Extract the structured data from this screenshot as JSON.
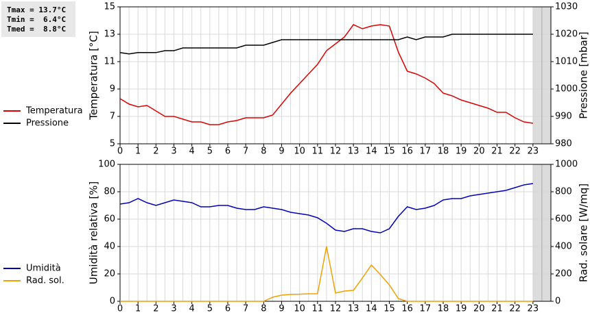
{
  "stats": [
    "Tmax = 13.7°C",
    "Tmin =  6.4°C",
    "Tmed =  8.8°C"
  ],
  "chart_data": [
    {
      "type": "line",
      "y_label": "Temperatura [°C]",
      "y2_label": "Pressione [mbar]",
      "x": [
        0,
        0.5,
        1,
        1.5,
        2,
        2.5,
        3,
        3.5,
        4,
        4.5,
        5,
        5.5,
        6,
        6.5,
        7,
        7.5,
        8,
        8.5,
        9,
        9.5,
        10,
        10.5,
        11,
        11.5,
        12,
        12.5,
        13,
        13.5,
        14,
        14.5,
        15,
        15.5,
        16,
        16.5,
        17,
        17.5,
        18,
        18.5,
        19,
        19.5,
        20,
        20.5,
        21,
        21.5,
        22,
        22.5,
        23
      ],
      "xlim": [
        0,
        24
      ],
      "xticks": [
        0,
        1,
        2,
        3,
        4,
        5,
        6,
        7,
        8,
        9,
        10,
        11,
        12,
        13,
        14,
        15,
        16,
        17,
        18,
        19,
        20,
        21,
        22,
        23
      ],
      "ylim": [
        5,
        15
      ],
      "yticks": [
        5,
        7,
        9,
        11,
        13,
        15
      ],
      "y2lim": [
        980,
        1030
      ],
      "y2ticks": [
        980,
        990,
        1000,
        1010,
        1020,
        1030
      ],
      "grid": true,
      "series": [
        {
          "name": "Temperatura",
          "color": "#dd0000",
          "axis": "y",
          "values": [
            8.3,
            7.9,
            7.7,
            7.8,
            7.4,
            7.0,
            7.0,
            6.8,
            6.6,
            6.6,
            6.4,
            6.4,
            6.6,
            6.7,
            6.9,
            6.9,
            6.9,
            7.1,
            7.9,
            8.7,
            9.4,
            10.1,
            10.8,
            11.8,
            12.3,
            12.8,
            13.7,
            13.4,
            13.6,
            13.7,
            13.6,
            11.7,
            10.3,
            10.1,
            9.8,
            9.4,
            8.7,
            8.5,
            8.2,
            8.0,
            7.8,
            7.6,
            7.3,
            7.3,
            6.9,
            6.6,
            6.5
          ]
        },
        {
          "name": "Pressione",
          "color": "#000000",
          "axis": "y2",
          "values": [
            1013.3,
            1012.8,
            1013.3,
            1013.3,
            1013.3,
            1014,
            1014,
            1015,
            1015,
            1015,
            1015,
            1015,
            1015,
            1015,
            1016,
            1016,
            1016,
            1017,
            1018,
            1018,
            1018,
            1018,
            1018,
            1018,
            1018,
            1018,
            1018,
            1018,
            1018,
            1018,
            1018,
            1018,
            1019,
            1018,
            1019,
            1019,
            1019,
            1020,
            1020,
            1020,
            1020,
            1020,
            1020,
            1020,
            1020,
            1020,
            1020
          ]
        }
      ]
    },
    {
      "type": "line",
      "y_label": "Umidità relativa [%]",
      "y2_label": "Rad. solare [W/mq]",
      "x": [
        0,
        0.5,
        1,
        1.5,
        2,
        2.5,
        3,
        3.5,
        4,
        4.5,
        5,
        5.5,
        6,
        6.5,
        7,
        7.5,
        8,
        8.5,
        9,
        9.5,
        10,
        10.5,
        11,
        11.5,
        12,
        12.5,
        13,
        13.5,
        14,
        14.5,
        15,
        15.5,
        16,
        16.5,
        17,
        17.5,
        18,
        18.5,
        19,
        19.5,
        20,
        20.5,
        21,
        21.5,
        22,
        22.5,
        23
      ],
      "xlim": [
        0,
        24
      ],
      "xticks": [
        0,
        1,
        2,
        3,
        4,
        5,
        6,
        7,
        8,
        9,
        10,
        11,
        12,
        13,
        14,
        15,
        16,
        17,
        18,
        19,
        20,
        21,
        22,
        23
      ],
      "ylim": [
        0,
        100
      ],
      "yticks": [
        0,
        20,
        40,
        60,
        80,
        100
      ],
      "y2lim": [
        0,
        1000
      ],
      "y2ticks": [
        0,
        200,
        400,
        600,
        800,
        1000
      ],
      "grid": true,
      "series": [
        {
          "name": "Umidità",
          "color": "#0000bb",
          "axis": "y",
          "values": [
            71,
            72,
            75,
            72,
            70,
            72,
            74,
            73,
            72,
            69,
            69,
            70,
            70,
            68,
            67,
            67,
            69,
            68,
            67,
            65,
            64,
            63,
            61,
            57,
            52,
            51,
            53,
            53,
            51,
            50,
            53,
            62,
            69,
            67,
            68,
            70,
            74,
            75,
            75,
            77,
            78,
            79,
            80,
            81,
            83,
            85,
            86
          ]
        },
        {
          "name": "Rad. sol.",
          "color": "#f0a000",
          "axis": "y2",
          "values": [
            0,
            0,
            0,
            0,
            0,
            0,
            0,
            0,
            0,
            0,
            0,
            0,
            0,
            0,
            0,
            0,
            0,
            30,
            45,
            50,
            52,
            55,
            55,
            400,
            60,
            75,
            80,
            170,
            265,
            195,
            120,
            20,
            0,
            0,
            0,
            0,
            0,
            0,
            0,
            0,
            0,
            0,
            0,
            0,
            0,
            0,
            0
          ]
        }
      ]
    }
  ]
}
